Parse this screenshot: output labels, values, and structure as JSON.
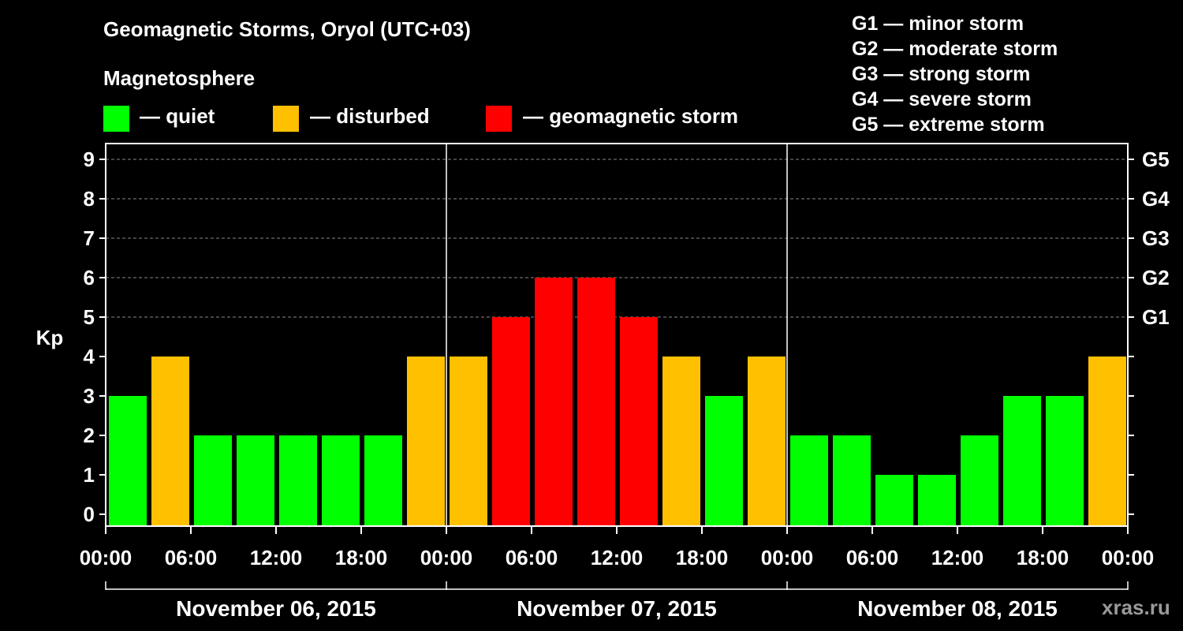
{
  "title": "Geomagnetic Storms, Oryol (UTC+03)",
  "magnetosphere_label": "Magnetosphere",
  "legend": [
    {
      "label": "— quiet",
      "color": "#00ff00"
    },
    {
      "label": "— disturbed",
      "color": "#ffc000"
    },
    {
      "label": "— geomagnetic storm",
      "color": "#ff0000"
    }
  ],
  "storm_scale": [
    "G1 — minor storm",
    "G2 — moderate storm",
    "G3 — strong storm",
    "G4 — severe storm",
    "G5 — extreme storm"
  ],
  "watermark": "xras.ru",
  "chart_data": {
    "type": "bar",
    "ylabel": "Kp",
    "ylim": [
      0,
      9
    ],
    "yticks": [
      0,
      1,
      2,
      3,
      4,
      5,
      6,
      7,
      8,
      9
    ],
    "right_ticks": [
      {
        "value": 5,
        "label": "G1"
      },
      {
        "value": 6,
        "label": "G2"
      },
      {
        "value": 7,
        "label": "G3"
      },
      {
        "value": 8,
        "label": "G4"
      },
      {
        "value": 9,
        "label": "G5"
      }
    ],
    "grid": true,
    "x_tick_labels": [
      "00:00",
      "06:00",
      "12:00",
      "18:00",
      "00:00",
      "06:00",
      "12:00",
      "18:00",
      "00:00",
      "06:00",
      "12:00",
      "18:00",
      "00:00"
    ],
    "days": [
      "November 06, 2015",
      "November 07, 2015",
      "November 08, 2015"
    ],
    "interval_hours": 3,
    "values": [
      3,
      4,
      2,
      2,
      2,
      2,
      2,
      4,
      4,
      5,
      6,
      6,
      5,
      4,
      3,
      4,
      2,
      2,
      1,
      1,
      2,
      3,
      3,
      4
    ],
    "colors": {
      "quiet": "#00ff00",
      "disturbed": "#ffc000",
      "storm": "#ff0000"
    },
    "thresholds": {
      "disturbed": 4,
      "storm": 5
    }
  }
}
